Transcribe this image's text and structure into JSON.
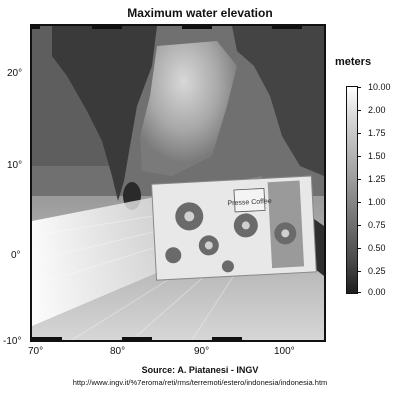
{
  "title": "Maximum water elevation",
  "map": {
    "x_ticks": [
      "70°",
      "80°",
      "90°",
      "100°"
    ],
    "y_ticks": [
      "20°",
      "10°",
      "0°",
      "-10°"
    ]
  },
  "colorbar": {
    "title": "meters",
    "labels": [
      "10.00",
      "2.00",
      "1.75",
      "1.50",
      "1.25",
      "1.00",
      "0.75",
      "0.50",
      "0.25",
      "0.00"
    ]
  },
  "overlay": {
    "brand_text": "Presse Coffee"
  },
  "footer": {
    "source": "Source: A. Piatanesi - INGV",
    "url": "http://www.ingv.it/%7eroma/reti/rms/terremoti/estero/indonesia/indonesia.htm"
  }
}
